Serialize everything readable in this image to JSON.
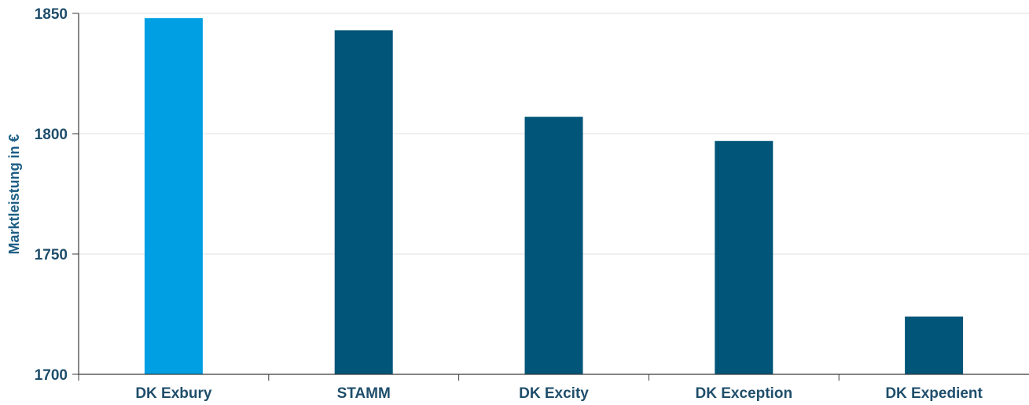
{
  "chart_data": {
    "type": "bar",
    "categories": [
      "DK Exbury",
      "STAMM",
      "DK Excity",
      "DK Exception",
      "DK Expedient"
    ],
    "values": [
      1848,
      1843,
      1807,
      1797,
      1724
    ],
    "ylabel": "Marktleistung in €",
    "xlabel": "",
    "ylim": [
      1700,
      1850
    ],
    "yticks": [
      1700,
      1750,
      1800,
      1850
    ],
    "grid": true,
    "colors": {
      "highlight": "#009fe3",
      "default": "#005578"
    },
    "highlight_index": 0
  }
}
